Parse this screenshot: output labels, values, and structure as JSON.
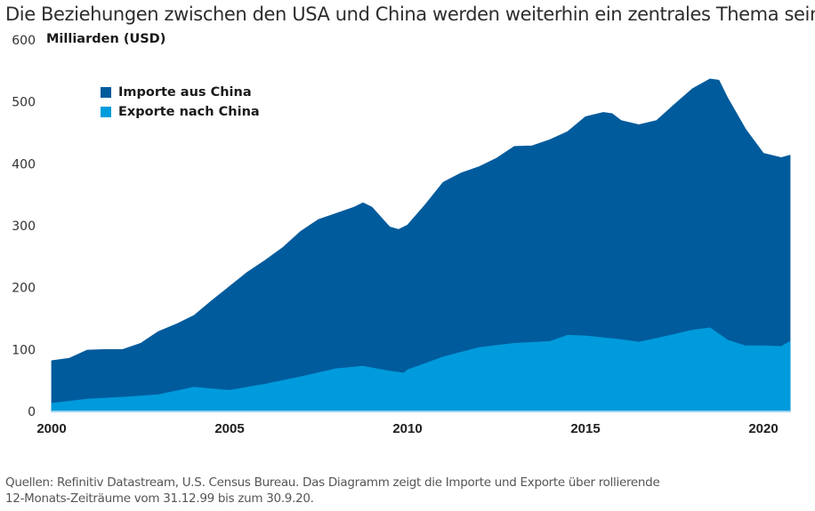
{
  "title": "Die Beziehungen zwischen den USA und China werden weiterhin ein zentrales Thema sein",
  "source_line1": "Quellen: Refinitiv Datastream, U.S. Census Bureau. Das Diagramm zeigt die Importe und Exporte über rollierende",
  "source_line2": "12-Monats-Zeiträume vom 31.12.99 bis zum 30.9.20.",
  "colors": {
    "imports": "#005b9c",
    "exports": "#009bdc",
    "baseline": "#9fd3ee"
  },
  "chart_data": {
    "type": "area",
    "title": "Die Beziehungen zwischen den USA und China werden weiterhin ein zentrales Thema sein",
    "ylabel": "Milliarden (USD)",
    "xlabel": "",
    "ylim": [
      0,
      600
    ],
    "xlim": [
      2000,
      2020.75
    ],
    "yticks": [
      0,
      100,
      200,
      300,
      400,
      500,
      600
    ],
    "xticks": [
      2000,
      2005,
      2010,
      2015,
      2020
    ],
    "grid": false,
    "legend_position": "top-left",
    "stacked": false,
    "series": [
      {
        "name": "Importe aus China",
        "color": "#005b9c",
        "x": [
          2000,
          2000.5,
          2001,
          2001.5,
          2002,
          2002.5,
          2003,
          2003.5,
          2004,
          2004.5,
          2005,
          2005.5,
          2006,
          2006.5,
          2007,
          2007.5,
          2008,
          2008.5,
          2008.75,
          2009,
          2009.5,
          2009.75,
          2010,
          2010.5,
          2011,
          2011.5,
          2012,
          2012.5,
          2013,
          2013.5,
          2014,
          2014.5,
          2015,
          2015.5,
          2015.75,
          2016,
          2016.5,
          2017,
          2017.5,
          2018,
          2018.5,
          2018.75,
          2019,
          2019.5,
          2020,
          2020.5,
          2020.75
        ],
        "values": [
          82,
          86,
          99,
          100,
          100,
          110,
          129,
          141,
          155,
          179,
          202,
          225,
          244,
          265,
          291,
          310,
          320,
          330,
          337,
          330,
          298,
          294,
          301,
          334,
          370,
          385,
          395,
          409,
          428,
          429,
          439,
          452,
          476,
          483,
          481,
          470,
          463,
          470,
          496,
          521,
          537,
          535,
          506,
          456,
          417,
          410,
          414
        ]
      },
      {
        "name": "Exporte nach China",
        "color": "#009bdc",
        "x": [
          2000,
          2001,
          2002,
          2003,
          2004,
          2005,
          2006,
          2007,
          2008,
          2008.75,
          2009.5,
          2009.9,
          2010,
          2011,
          2012,
          2013,
          2014,
          2014.5,
          2015,
          2016,
          2016.5,
          2017,
          2018,
          2018.5,
          2019,
          2019.5,
          2020,
          2020.5,
          2020.75
        ],
        "values": [
          13,
          20,
          23,
          27,
          39,
          34,
          44,
          56,
          69,
          73,
          65,
          62,
          67,
          88,
          103,
          110,
          113,
          123,
          122,
          116,
          112,
          118,
          131,
          135,
          115,
          106,
          106,
          105,
          113
        ]
      }
    ]
  }
}
